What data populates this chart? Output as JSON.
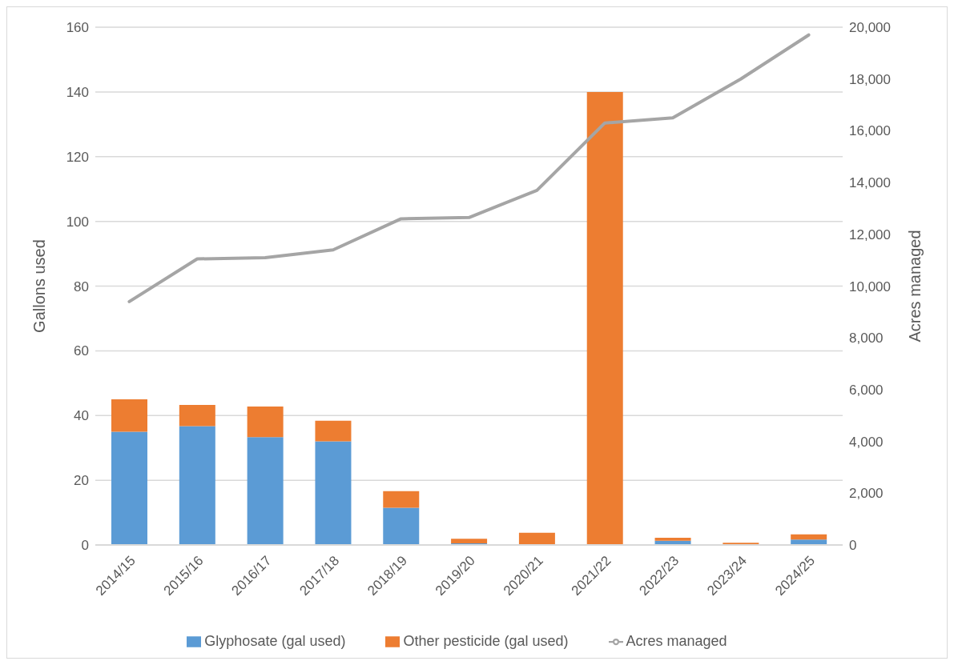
{
  "chart_data": {
    "type": "bar",
    "stacked": true,
    "categories": [
      "2014/15",
      "2015/16",
      "2016/17",
      "2017/18",
      "2018/19",
      "2019/20",
      "2020/21",
      "2021/22",
      "2022/23",
      "2023/24",
      "2024/25"
    ],
    "series": [
      {
        "name": "Glyphosate (gal used)",
        "color": "#5b9bd5",
        "values": [
          35,
          36.7,
          33.3,
          32,
          11.5,
          0.5,
          0,
          0,
          1.3,
          0,
          1.7
        ]
      },
      {
        "name": "Other pesticide (gal used)",
        "color": "#ed7d31",
        "values": [
          10,
          6.6,
          9.5,
          6.4,
          5.1,
          1.4,
          3.8,
          140,
          0.9,
          0.7,
          1.6
        ]
      },
      {
        "name": "Acres managed",
        "type": "line",
        "axis": "y2",
        "color": "#a5a5a5",
        "values": [
          9400,
          11050,
          11100,
          11400,
          12600,
          12650,
          13700,
          16300,
          16500,
          18000,
          19700
        ]
      }
    ],
    "ylabel": "Gallons  used",
    "y2label": "Acres managed",
    "ylim": [
      0,
      160
    ],
    "yticks": [
      0,
      20,
      40,
      60,
      80,
      100,
      120,
      140,
      160
    ],
    "y2lim": [
      0,
      20000
    ],
    "y2ticks": [
      {
        "value": 0,
        "label": "0"
      },
      {
        "value": 2000,
        "label": "2,000"
      },
      {
        "value": 4000,
        "label": "4,000"
      },
      {
        "value": 6000,
        "label": "6,000"
      },
      {
        "value": 8000,
        "label": "8,000"
      },
      {
        "value": 10000,
        "label": "10,000"
      },
      {
        "value": 12000,
        "label": "12,000"
      },
      {
        "value": 14000,
        "label": "14,000"
      },
      {
        "value": 16000,
        "label": "16,000"
      },
      {
        "value": 18000,
        "label": "18,000"
      },
      {
        "value": 20000,
        "label": "20,000"
      }
    ],
    "grid": "y",
    "legend": "bottom",
    "marker": "none"
  }
}
